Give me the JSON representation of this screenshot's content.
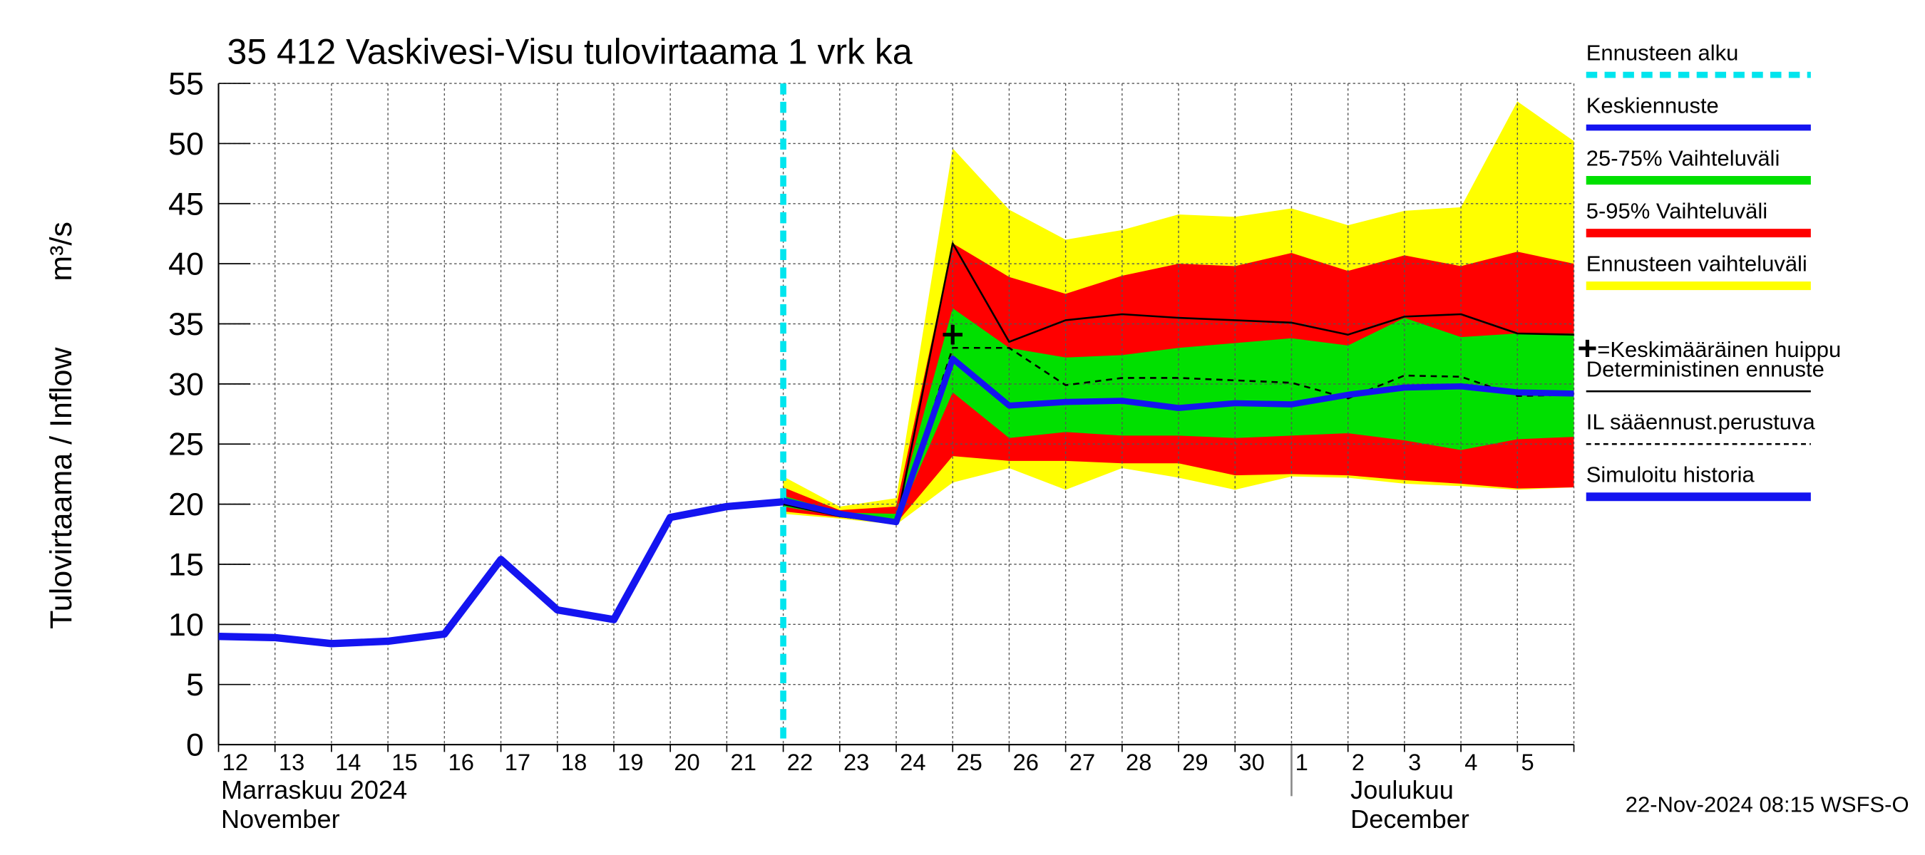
{
  "chart_data": {
    "type": "line",
    "title": "35 412 Vaskivesi-Visu tulovirtaama 1 vrk ka",
    "y_label": "Tulovirtaama / Inflow",
    "y_unit": "m³/s",
    "categories": [
      "12",
      "13",
      "14",
      "15",
      "16",
      "17",
      "18",
      "19",
      "20",
      "21",
      "22",
      "23",
      "24",
      "25",
      "26",
      "27",
      "28",
      "29",
      "30",
      "1",
      "2",
      "3",
      "4",
      "5",
      null
    ],
    "month_labels": [
      "Marraskuu 2024",
      "November",
      "Joulukuu",
      "December"
    ],
    "timestamp": "22-Nov-2024 08:15 WSFS-O",
    "ylim": [
      0,
      55
    ],
    "yticks": [
      0,
      5,
      10,
      15,
      20,
      25,
      30,
      35,
      40,
      45,
      50,
      55
    ],
    "grid": true,
    "forecast_start": {
      "name": "Ennusteen alku",
      "color": "#00e5ee",
      "x": 10
    },
    "bands": [
      {
        "name": "Ennusteen vaihteluväli",
        "color": "#ffff00",
        "low": [
          null,
          null,
          null,
          null,
          null,
          null,
          null,
          null,
          null,
          null,
          19.2,
          18.8,
          18.3,
          21.8,
          23.0,
          21.2,
          23.0,
          22.2,
          21.2,
          22.3,
          22.2,
          21.7,
          21.5,
          21.2,
          21.4
        ],
        "high": [
          null,
          null,
          null,
          null,
          null,
          null,
          null,
          null,
          null,
          null,
          22.3,
          19.8,
          20.5,
          49.6,
          44.5,
          42.0,
          42.8,
          44.1,
          43.9,
          44.6,
          43.2,
          44.4,
          44.7,
          53.5,
          50.2
        ]
      },
      {
        "name": "5-95% Vaihteluväli",
        "color": "#ff0000",
        "low": [
          null,
          null,
          null,
          null,
          null,
          null,
          null,
          null,
          null,
          null,
          19.4,
          18.9,
          18.4,
          24.0,
          23.6,
          23.6,
          23.4,
          23.4,
          22.4,
          22.5,
          22.4,
          22.0,
          21.7,
          21.3,
          21.4
        ],
        "high": [
          null,
          null,
          null,
          null,
          null,
          null,
          null,
          null,
          null,
          null,
          21.4,
          19.5,
          19.8,
          41.7,
          38.9,
          37.5,
          39.0,
          40.0,
          39.8,
          40.9,
          39.4,
          40.7,
          39.8,
          41.0,
          40.0
        ]
      },
      {
        "name": "25-75% Vaihteluväli",
        "color": "#00e000",
        "low": [
          null,
          null,
          null,
          null,
          null,
          null,
          null,
          null,
          null,
          null,
          19.8,
          19.0,
          18.5,
          29.3,
          25.5,
          26.0,
          25.7,
          25.7,
          25.5,
          25.7,
          25.9,
          25.3,
          24.5,
          25.4,
          25.6
        ],
        "high": [
          null,
          null,
          null,
          null,
          null,
          null,
          null,
          null,
          null,
          null,
          20.7,
          19.3,
          19.2,
          36.3,
          33.0,
          32.2,
          32.4,
          33.0,
          33.4,
          33.8,
          33.2,
          35.5,
          33.9,
          34.2,
          34.2
        ]
      }
    ],
    "series": [
      {
        "name": "Deterministinen ennuste",
        "color": "#000000",
        "width": 1.5,
        "dash": false,
        "values": [
          null,
          null,
          null,
          null,
          null,
          null,
          null,
          null,
          null,
          null,
          20.0,
          19.0,
          18.4,
          41.7,
          33.5,
          35.3,
          35.8,
          35.5,
          35.3,
          35.1,
          34.1,
          35.6,
          35.8,
          34.2,
          34.1
        ]
      },
      {
        "name": "IL sääennust.perustuva",
        "color": "#000000",
        "width": 1.5,
        "dash": true,
        "values": [
          null,
          null,
          null,
          null,
          null,
          null,
          null,
          null,
          null,
          null,
          20.0,
          19.0,
          18.4,
          33.0,
          33.0,
          29.9,
          30.5,
          30.5,
          30.3,
          30.1,
          28.8,
          30.7,
          30.6,
          29.0,
          29.1
        ]
      },
      {
        "name": "Simuloitu historia",
        "color": "#1414f0",
        "width": 6,
        "dash": false,
        "values": [
          9.0,
          8.9,
          8.4,
          8.6,
          9.2,
          15.4,
          11.2,
          10.4,
          18.9,
          19.8,
          20.2,
          null,
          null,
          null,
          null,
          null,
          null,
          null,
          null,
          null,
          null,
          null,
          null,
          null,
          null
        ]
      },
      {
        "name": "Keskiennuste",
        "color": "#1414f0",
        "width": 5,
        "dash": false,
        "values": [
          null,
          null,
          null,
          null,
          null,
          null,
          null,
          null,
          null,
          null,
          20.3,
          19.2,
          18.5,
          32.1,
          28.2,
          28.5,
          28.6,
          28.0,
          28.4,
          28.3,
          29.1,
          29.7,
          29.8,
          29.3,
          29.2
        ]
      }
    ],
    "peak": {
      "name": "=Keskimääräinen huippu",
      "x": 13,
      "value": 34.1
    }
  }
}
